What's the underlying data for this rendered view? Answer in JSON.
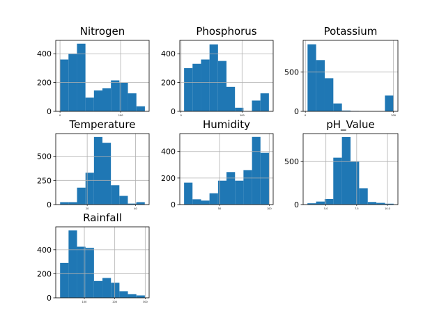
{
  "figure": {
    "bar_color": "#1f77b4",
    "grid_color": "#b0b0b0"
  },
  "chart_data": [
    {
      "type": "bar",
      "title": "Nitrogen",
      "bin_edges": [
        0,
        14,
        28,
        42,
        56,
        70,
        84,
        98,
        112,
        126,
        140
      ],
      "values": [
        360,
        400,
        470,
        95,
        145,
        160,
        215,
        200,
        125,
        35
      ],
      "xticks": [
        {
          "value": 0,
          "label": "0"
        },
        {
          "value": 100,
          "label": "100"
        }
      ],
      "xlim": [
        -7,
        147
      ],
      "yticks": [
        0,
        200,
        400
      ],
      "ylim": [
        0,
        493
      ],
      "grid": true
    },
    {
      "type": "bar",
      "title": "Phosphorus",
      "bin_edges": [
        5,
        18.9,
        32.8,
        46.7,
        60.6,
        74.5,
        88.4,
        102.3,
        116.2,
        130.1,
        144
      ],
      "values": [
        300,
        330,
        360,
        465,
        350,
        170,
        25,
        0,
        75,
        125
      ],
      "xticks": [
        {
          "value": 0,
          "label": "0"
        },
        {
          "value": 100,
          "label": "100"
        }
      ],
      "xlim": [
        -2,
        151
      ],
      "yticks": [
        0,
        200,
        400
      ],
      "ylim": [
        0,
        493
      ],
      "grid": true
    },
    {
      "type": "bar",
      "title": "Potassium",
      "bin_edges": [
        5,
        24.5,
        44,
        63.5,
        83,
        102.5,
        122,
        141.5,
        161,
        180.5,
        200
      ],
      "values": [
        850,
        650,
        420,
        100,
        10,
        5,
        0,
        0,
        0,
        200
      ],
      "xticks": [
        {
          "value": 0,
          "label": "0"
        },
        {
          "value": 200,
          "label": "200"
        }
      ],
      "xlim": [
        -5,
        210
      ],
      "yticks": [
        0,
        500
      ],
      "ylim": [
        0,
        900
      ],
      "grid": true
    },
    {
      "type": "bar",
      "title": "Temperature",
      "bin_edges": [
        8.8,
        12.3,
        15.8,
        19.3,
        22.8,
        26.3,
        29.8,
        33.3,
        36.8,
        40.3,
        43.8
      ],
      "values": [
        25,
        25,
        175,
        330,
        700,
        640,
        200,
        90,
        10,
        25
      ],
      "xticks": [
        {
          "value": 20,
          "label": "20"
        },
        {
          "value": 40,
          "label": "40"
        }
      ],
      "xlim": [
        7,
        45.6
      ],
      "yticks": [
        0,
        250,
        500
      ],
      "ylim": [
        0,
        735
      ],
      "grid": true
    },
    {
      "type": "bar",
      "title": "Humidity",
      "bin_edges": [
        14.3,
        22.8,
        31.4,
        39.9,
        48.5,
        57,
        65.6,
        74.1,
        82.7,
        91.2,
        99.8
      ],
      "values": [
        165,
        40,
        30,
        85,
        180,
        245,
        180,
        260,
        510,
        390
      ],
      "xticks": [
        {
          "value": 50,
          "label": "50"
        },
        {
          "value": 100,
          "label": "100"
        }
      ],
      "xlim": [
        10,
        104
      ],
      "yticks": [
        0,
        200,
        400
      ],
      "ylim": [
        0,
        535
      ],
      "grid": true
    },
    {
      "type": "bar",
      "title": "pH_Value",
      "bin_edges": [
        3.5,
        4.2,
        4.9,
        5.6,
        6.3,
        7.0,
        7.7,
        8.4,
        9.1,
        9.8,
        10.5
      ],
      "values": [
        15,
        35,
        65,
        545,
        785,
        505,
        190,
        30,
        20,
        10
      ],
      "xticks": [
        {
          "value": 5,
          "label": "5.0"
        },
        {
          "value": 7.5,
          "label": "7.5"
        },
        {
          "value": 10,
          "label": "10.0"
        }
      ],
      "xlim": [
        3.15,
        10.85
      ],
      "yticks": [
        0,
        500
      ],
      "ylim": [
        0,
        825
      ],
      "grid": true
    },
    {
      "type": "bar",
      "title": "Rainfall",
      "bin_edges": [
        20.2,
        48.1,
        76,
        103.8,
        131.7,
        159.6,
        187.5,
        215.4,
        243.2,
        271.1,
        299
      ],
      "values": [
        290,
        560,
        425,
        415,
        140,
        165,
        125,
        55,
        30,
        20
      ],
      "xticks": [
        {
          "value": 100,
          "label": "100"
        },
        {
          "value": 200,
          "label": "200"
        },
        {
          "value": 300,
          "label": "300"
        }
      ],
      "xlim": [
        6,
        313
      ],
      "yticks": [
        0,
        200,
        400
      ],
      "ylim": [
        0,
        590
      ],
      "grid": true
    }
  ]
}
